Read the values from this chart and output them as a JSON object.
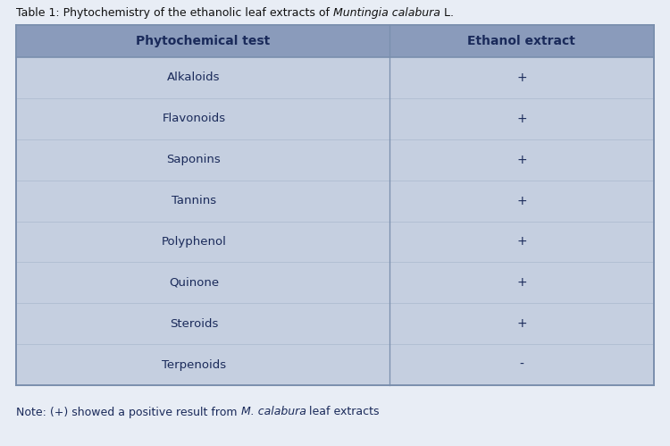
{
  "title_regular": "Table 1: Phytochemistry of the ethanolic leaf extracts of ",
  "title_italic": "Muntingia calabura",
  "title_end": " L.",
  "col_headers": [
    "Phytochemical test",
    "Ethanol extract"
  ],
  "rows": [
    [
      "Alkaloids",
      "+"
    ],
    [
      "Flavonoids",
      "+"
    ],
    [
      "Saponins",
      "+"
    ],
    [
      "Tannins",
      "+"
    ],
    [
      "Polyphenol",
      "+"
    ],
    [
      "Quinone",
      "+"
    ],
    [
      "Steroids",
      "+"
    ],
    [
      "Terpenoids",
      "-"
    ]
  ],
  "note_regular": "Note: (+) showed a positive result from ",
  "note_italic": "M. calabura",
  "note_end": " leaf extracts",
  "bg_color": "#c5cfe0",
  "header_bg": "#8a9bbb",
  "outer_bg": "#e8edf5",
  "table_outer_bg": "#ffffff",
  "text_color": "#1a2a5a",
  "border_color": "#7a8fad",
  "header_text_color": "#1a2a5a",
  "note_color": "#1a2a5a",
  "title_color": "#111111",
  "fig_width": 7.5,
  "fig_height": 4.99,
  "dpi": 100
}
